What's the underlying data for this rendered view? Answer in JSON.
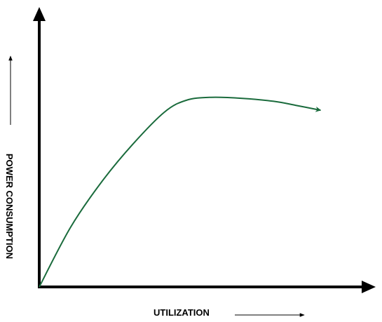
{
  "chart_data": {
    "type": "line",
    "title": "",
    "xlabel": "UTILIZATION",
    "ylabel": "POWER CONSUMPTION",
    "grid": false,
    "legend": "none",
    "axis_ticks": "none",
    "xlim": [
      0,
      100
    ],
    "ylim": [
      0,
      100
    ],
    "series": [
      {
        "x": [
          0,
          10,
          20,
          30,
          40,
          47,
          55,
          65,
          75,
          82,
          90
        ],
        "y": [
          0,
          30,
          53,
          72,
          88,
          94,
          95.5,
          95,
          93.5,
          91.5,
          89
        ],
        "color": "#1a6b3c",
        "ends_with_arrow": true
      }
    ],
    "axis_color": "#000000"
  }
}
